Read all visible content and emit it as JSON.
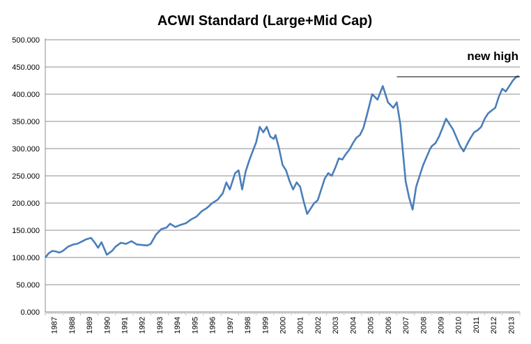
{
  "chart_data": {
    "type": "line",
    "title": "ACWI Standard (Large+Mid Cap)",
    "xlabel": "",
    "ylabel": "",
    "ylim": [
      0,
      500
    ],
    "xlim": [
      1987,
      2014
    ],
    "grid": true,
    "legend": "none",
    "y_ticks": [
      "0.000",
      "50.000",
      "100.000",
      "150.000",
      "200.000",
      "250.000",
      "300.000",
      "350.000",
      "400.000",
      "450.000",
      "500.000"
    ],
    "x_ticks": [
      "1987",
      "1988",
      "1989",
      "1990",
      "1991",
      "1992",
      "1993",
      "1994",
      "1995",
      "1996",
      "1997",
      "1998",
      "1999",
      "2000",
      "2001",
      "2002",
      "2003",
      "2004",
      "2005",
      "2006",
      "2007",
      "2008",
      "2009",
      "2010",
      "2011",
      "2012",
      "2013"
    ],
    "line_color": "#4A7EBB",
    "series": [
      {
        "x": [
          1987.0,
          1987.2,
          1987.4,
          1987.6,
          1987.8,
          1988.0,
          1988.3,
          1988.6,
          1988.8,
          1989.0,
          1989.3,
          1989.6,
          1989.8,
          1990.0,
          1990.2,
          1990.5,
          1990.8,
          1991.0,
          1991.3,
          1991.6,
          1991.9,
          1992.2,
          1992.5,
          1992.8,
          1993.0,
          1993.3,
          1993.6,
          1993.9,
          1994.1,
          1994.4,
          1994.7,
          1995.0,
          1995.3,
          1995.6,
          1995.9,
          1996.2,
          1996.5,
          1996.8,
          1997.1,
          1997.3,
          1997.5,
          1997.8,
          1998.0,
          1998.2,
          1998.4,
          1998.6,
          1998.8,
          1999.0,
          1999.2,
          1999.4,
          1999.6,
          1999.8,
          2000.0,
          2000.1,
          2000.3,
          2000.5,
          2000.7,
          2000.9,
          2001.1,
          2001.3,
          2001.5,
          2001.7,
          2001.9,
          2002.1,
          2002.3,
          2002.5,
          2002.7,
          2002.9,
          2003.1,
          2003.3,
          2003.5,
          2003.7,
          2003.9,
          2004.1,
          2004.3,
          2004.5,
          2004.7,
          2004.9,
          2005.1,
          2005.3,
          2005.6,
          2005.9,
          2006.2,
          2006.5,
          2006.8,
          2007.0,
          2007.2,
          2007.5,
          2007.7,
          2007.9,
          2008.1,
          2008.3,
          2008.5,
          2008.7,
          2008.9,
          2009.0,
          2009.2,
          2009.4,
          2009.6,
          2009.8,
          2010.0,
          2010.2,
          2010.4,
          2010.6,
          2010.8,
          2011.0,
          2011.2,
          2011.4,
          2011.6,
          2011.8,
          2012.0,
          2012.2,
          2012.4,
          2012.6,
          2012.8,
          2013.0,
          2013.2,
          2013.4,
          2013.6,
          2013.8,
          2013.95
        ],
        "y": [
          100,
          108,
          112,
          111,
          109,
          112,
          120,
          124,
          125,
          128,
          133,
          136,
          128,
          118,
          128,
          105,
          112,
          120,
          127,
          125,
          130,
          124,
          123,
          122,
          125,
          142,
          152,
          155,
          162,
          156,
          160,
          163,
          170,
          175,
          185,
          191,
          200,
          206,
          218,
          238,
          225,
          255,
          260,
          225,
          258,
          278,
          295,
          312,
          340,
          330,
          340,
          322,
          318,
          325,
          300,
          270,
          260,
          240,
          225,
          238,
          230,
          203,
          180,
          190,
          200,
          205,
          225,
          245,
          255,
          250,
          265,
          282,
          280,
          290,
          298,
          310,
          320,
          325,
          338,
          362,
          400,
          390,
          415,
          385,
          375,
          385,
          345,
          240,
          210,
          188,
          230,
          250,
          270,
          285,
          300,
          305,
          310,
          322,
          338,
          355,
          345,
          335,
          320,
          305,
          295,
          308,
          320,
          330,
          334,
          340,
          355,
          365,
          370,
          375,
          395,
          410,
          405,
          415,
          425,
          432,
          433
        ]
      }
    ],
    "annotation": {
      "text": "new high",
      "y": 432,
      "x_start": 2007.0,
      "x_end": 2014.0
    }
  }
}
